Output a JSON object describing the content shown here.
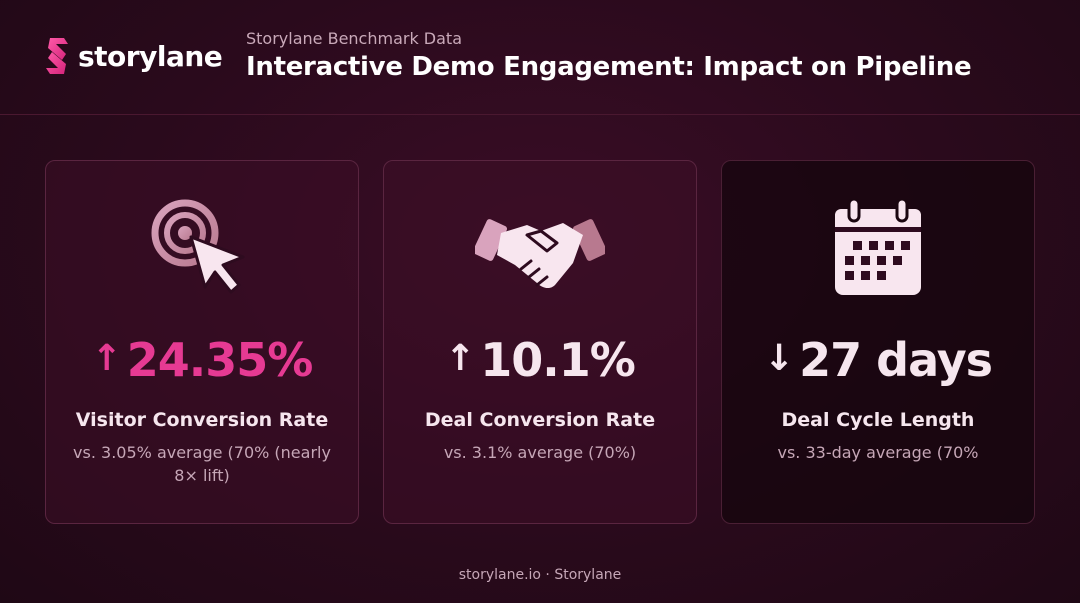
{
  "brand": {
    "name": "storylane",
    "logo_icon": "storylane-s-logo"
  },
  "header": {
    "subtitle": "Storylane Benchmark Data",
    "title": "Interactive Demo Engagement: Impact on Pipeline"
  },
  "cards": [
    {
      "icon": "cursor-target-icon",
      "arrow": "↑",
      "value": "24.35%",
      "value_color": "#e63a93",
      "label": "Visitor Conversion Rate",
      "note": "vs. 3.05% average (70% (nearly 8× lift)"
    },
    {
      "icon": "handshake-icon",
      "arrow": "↑",
      "value": "10.1%",
      "value_color": "#f6e6ee",
      "label": "Deal Conversion Rate",
      "note": "vs. 3.1% average (70%)"
    },
    {
      "icon": "calendar-icon",
      "arrow": "↓",
      "value": "27 days",
      "value_color": "#f6e6ee",
      "label": "Deal Cycle Length",
      "note": "vs. 33-day average (70%"
    }
  ],
  "footer": {
    "text": "storylane.io · Storylane"
  },
  "colors": {
    "accent": "#e63a93",
    "background": "#2a0a1c"
  }
}
